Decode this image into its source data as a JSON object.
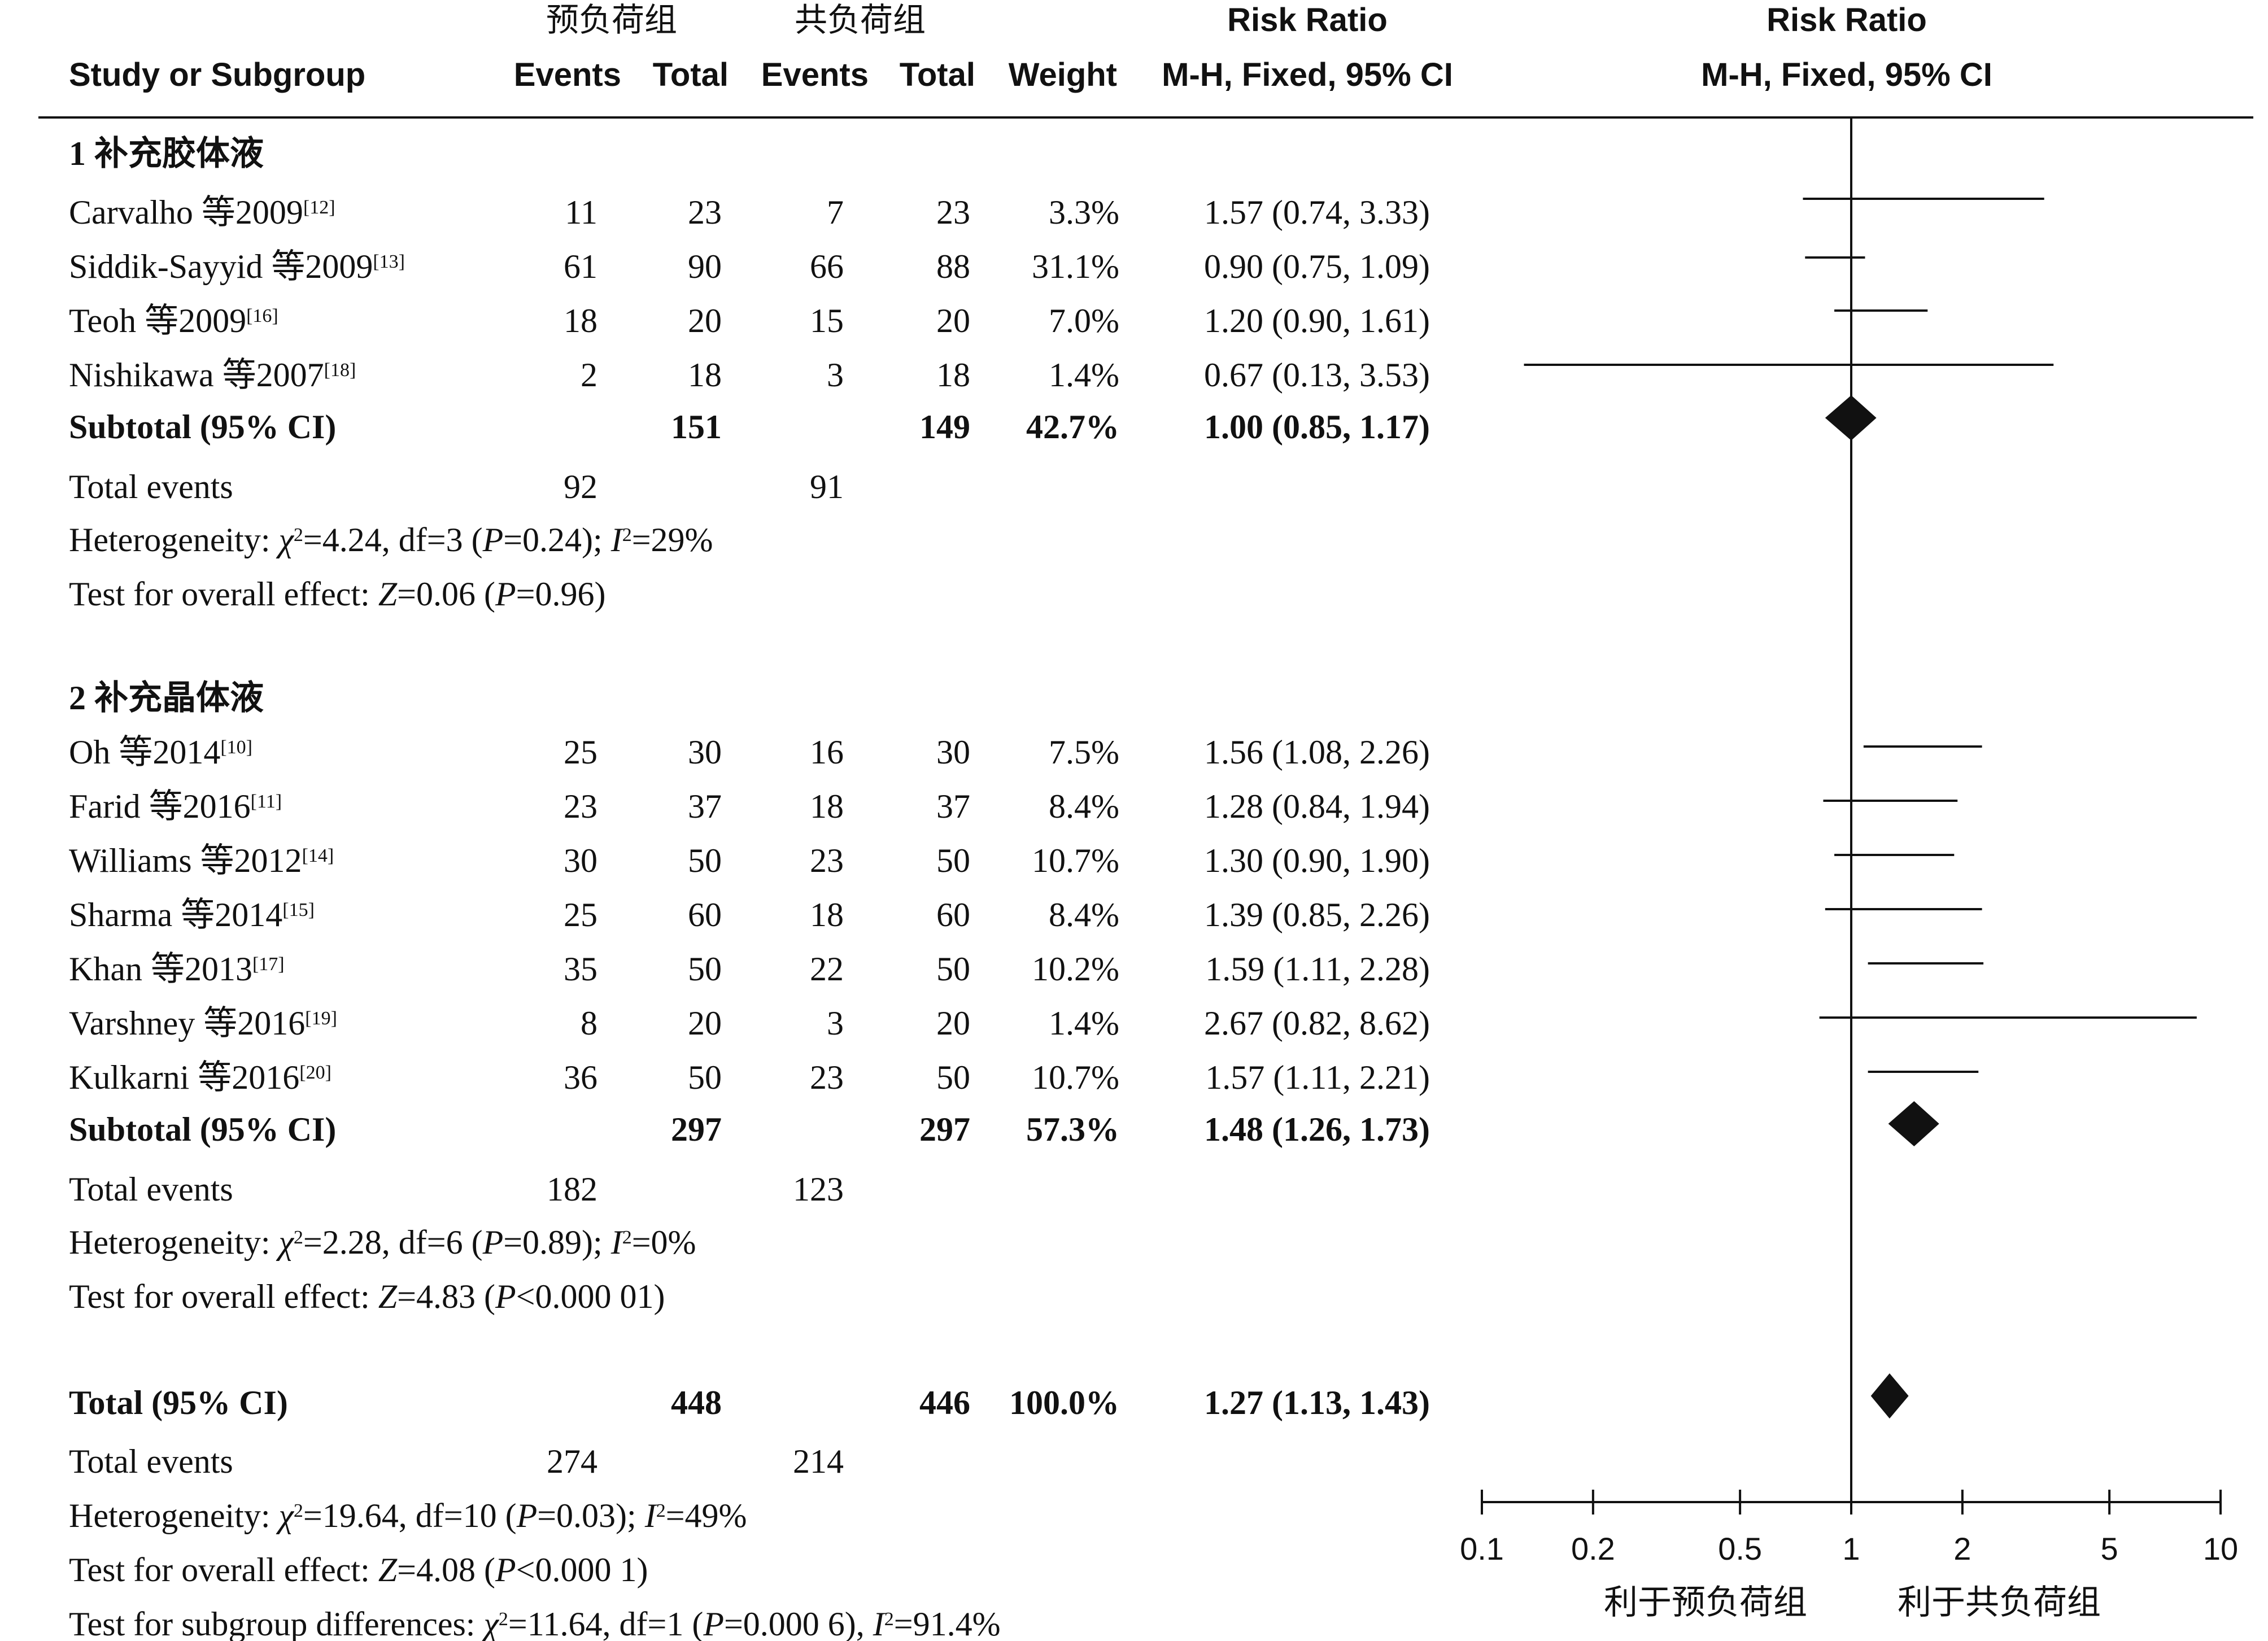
{
  "header": {
    "group_exp": "预负荷组",
    "group_ctl": "共负荷组",
    "col_study": "Study or Subgroup",
    "col_events": "Events",
    "col_total": "Total",
    "col_weight": "Weight",
    "col_rr_title": "Risk Ratio",
    "col_rr_method": "M-H, Fixed, 95% CI",
    "plot_title": "Risk Ratio",
    "plot_method": "M-H, Fixed, 95% CI"
  },
  "subgroups": [
    {
      "title": "1 补充胶体液",
      "studies": [
        {
          "name": "Carvalho 等2009",
          "ref": "[12]",
          "e1": "11",
          "t1": "23",
          "e2": "7",
          "t2": "23",
          "weight": "3.3%",
          "ci_text": "1.57 (0.74, 3.33)",
          "rr": 1.57,
          "lo": 0.74,
          "hi": 3.33
        },
        {
          "name": "Siddik-Sayyid 等2009",
          "ref": "[13]",
          "e1": "61",
          "t1": "90",
          "e2": "66",
          "t2": "88",
          "weight": "31.1%",
          "ci_text": "0.90 (0.75, 1.09)",
          "rr": 0.9,
          "lo": 0.75,
          "hi": 1.09
        },
        {
          "name": "Teoh 等2009",
          "ref": "[16]",
          "e1": "18",
          "t1": "20",
          "e2": "15",
          "t2": "20",
          "weight": "7.0%",
          "ci_text": "1.20 (0.90, 1.61)",
          "rr": 1.2,
          "lo": 0.9,
          "hi": 1.61
        },
        {
          "name": "Nishikawa 等2007",
          "ref": "[18]",
          "e1": "2",
          "t1": "18",
          "e2": "3",
          "t2": "18",
          "weight": "1.4%",
          "ci_text": "0.67 (0.13, 3.53)",
          "rr": 0.67,
          "lo": 0.13,
          "hi": 3.53
        }
      ],
      "subtotal": {
        "label": "Subtotal (95% CI)",
        "t1": "151",
        "t2": "149",
        "weight": "42.7%",
        "ci_text": "1.00 (0.85, 1.17)",
        "rr": 1.0,
        "lo": 0.85,
        "hi": 1.17
      },
      "total_events": {
        "label": "Total events",
        "e1": "92",
        "e2": "91"
      },
      "heterogeneity": {
        "prefix": "Heterogeneity: ",
        "chi": "χ",
        "chi_text": "=4.24, df=3 (",
        "p": "P",
        "p_text": "=0.24); ",
        "i": "I",
        "i_text": "=29%"
      },
      "overall": {
        "prefix": "Test for overall effect: ",
        "z": "Z",
        "z_text": "=0.06 (",
        "p": "P",
        "p_text": "=0.96)"
      }
    },
    {
      "title": "2 补充晶体液",
      "studies": [
        {
          "name": "Oh 等2014",
          "ref": "[10]",
          "e1": "25",
          "t1": "30",
          "e2": "16",
          "t2": "30",
          "weight": "7.5%",
          "ci_text": "1.56 (1.08, 2.26)",
          "rr": 1.56,
          "lo": 1.08,
          "hi": 2.26
        },
        {
          "name": "Farid 等2016",
          "ref": "[11]",
          "e1": "23",
          "t1": "37",
          "e2": "18",
          "t2": "37",
          "weight": "8.4%",
          "ci_text": "1.28 (0.84, 1.94)",
          "rr": 1.28,
          "lo": 0.84,
          "hi": 1.94
        },
        {
          "name": "Williams 等2012",
          "ref": "[14]",
          "e1": "30",
          "t1": "50",
          "e2": "23",
          "t2": "50",
          "weight": "10.7%",
          "ci_text": "1.30 (0.90, 1.90)",
          "rr": 1.3,
          "lo": 0.9,
          "hi": 1.9
        },
        {
          "name": "Sharma 等2014",
          "ref": "[15]",
          "e1": "25",
          "t1": "60",
          "e2": "18",
          "t2": "60",
          "weight": "8.4%",
          "ci_text": "1.39 (0.85, 2.26)",
          "rr": 1.39,
          "lo": 0.85,
          "hi": 2.26
        },
        {
          "name": "Khan 等2013",
          "ref": "[17]",
          "e1": "35",
          "t1": "50",
          "e2": "22",
          "t2": "50",
          "weight": "10.2%",
          "ci_text": "1.59 (1.11, 2.28)",
          "rr": 1.59,
          "lo": 1.11,
          "hi": 2.28
        },
        {
          "name": "Varshney 等2016",
          "ref": "[19]",
          "e1": "8",
          "t1": "20",
          "e2": "3",
          "t2": "20",
          "weight": "1.4%",
          "ci_text": "2.67 (0.82, 8.62)",
          "rr": 2.67,
          "lo": 0.82,
          "hi": 8.62
        },
        {
          "name": "Kulkarni 等2016",
          "ref": "[20]",
          "e1": "36",
          "t1": "50",
          "e2": "23",
          "t2": "50",
          "weight": "10.7%",
          "ci_text": "1.57 (1.11, 2.21)",
          "rr": 1.57,
          "lo": 1.11,
          "hi": 2.21
        }
      ],
      "subtotal": {
        "label": "Subtotal (95% CI)",
        "t1": "297",
        "t2": "297",
        "weight": "57.3%",
        "ci_text": "1.48 (1.26, 1.73)",
        "rr": 1.48,
        "lo": 1.26,
        "hi": 1.73
      },
      "total_events": {
        "label": "Total events",
        "e1": "182",
        "e2": "123"
      },
      "heterogeneity": {
        "prefix": "Heterogeneity: ",
        "chi": "χ",
        "chi_text": "=2.28, df=6 (",
        "p": "P",
        "p_text": "=0.89); ",
        "i": "I",
        "i_text": "=0%"
      },
      "overall": {
        "prefix": "Test for overall effect: ",
        "z": "Z",
        "z_text": "=4.83 (",
        "p": "P",
        "p_text": "<0.000 01)"
      }
    }
  ],
  "total": {
    "label": "Total (95% CI)",
    "t1": "448",
    "t2": "446",
    "weight": "100.0%",
    "ci_text": "1.27 (1.13, 1.43)",
    "rr": 1.27,
    "lo": 1.13,
    "hi": 1.43,
    "total_events": {
      "label": "Total events",
      "e1": "274",
      "e2": "214"
    },
    "heterogeneity": {
      "prefix": "Heterogeneity: ",
      "chi": "χ",
      "chi_text": "=19.64, df=10 (",
      "p": "P",
      "p_text": "=0.03); ",
      "i": "I",
      "i_text": "=49%"
    },
    "overall": {
      "prefix": "Test for overall effect: ",
      "z": "Z",
      "z_text": "=4.08 (",
      "p": "P",
      "p_text": "<0.000 1)"
    },
    "subgroup_diff": {
      "prefix": "Test for subgroup differences: ",
      "chi": "χ",
      "chi_text": "=11.64, df=1 (",
      "p": "P",
      "p_text": "=0.000 6), ",
      "i": "I",
      "i_text": "=91.4%"
    }
  },
  "axis": {
    "scale": "log",
    "range": [
      0.1,
      10
    ],
    "ticks": [
      {
        "value": 0.1,
        "label": "0.1"
      },
      {
        "value": 0.2,
        "label": "0.2"
      },
      {
        "value": 0.5,
        "label": "0.5"
      },
      {
        "value": 1,
        "label": "1"
      },
      {
        "value": 2,
        "label": "2"
      },
      {
        "value": 5,
        "label": "5"
      },
      {
        "value": 10,
        "label": "10"
      }
    ],
    "favours_left": "利于预负荷组",
    "favours_right": "利于共负荷组"
  },
  "chart_data": {
    "type": "forest",
    "scale": "log",
    "xlim": [
      0.1,
      10
    ],
    "null_line": 1,
    "rows": [
      {
        "label": "Carvalho 等2009",
        "rr": 1.57,
        "lo": 0.74,
        "hi": 3.33,
        "weight": 3.3
      },
      {
        "label": "Siddik-Sayyid 等2009",
        "rr": 0.9,
        "lo": 0.75,
        "hi": 1.09,
        "weight": 31.1
      },
      {
        "label": "Teoh 等2009",
        "rr": 1.2,
        "lo": 0.9,
        "hi": 1.61,
        "weight": 7.0
      },
      {
        "label": "Nishikawa 等2007",
        "rr": 0.67,
        "lo": 0.13,
        "hi": 3.53,
        "weight": 1.4
      },
      {
        "label": "Subtotal (95% CI)",
        "rr": 1.0,
        "lo": 0.85,
        "hi": 1.17,
        "weight": 42.7,
        "summary": true
      },
      {
        "label": "Oh 等2014",
        "rr": 1.56,
        "lo": 1.08,
        "hi": 2.26,
        "weight": 7.5
      },
      {
        "label": "Farid 等2016",
        "rr": 1.28,
        "lo": 0.84,
        "hi": 1.94,
        "weight": 8.4
      },
      {
        "label": "Williams 等2012",
        "rr": 1.3,
        "lo": 0.9,
        "hi": 1.9,
        "weight": 10.7
      },
      {
        "label": "Sharma 等2014",
        "rr": 1.39,
        "lo": 0.85,
        "hi": 2.26,
        "weight": 8.4
      },
      {
        "label": "Khan 等2013",
        "rr": 1.59,
        "lo": 1.11,
        "hi": 2.28,
        "weight": 10.2
      },
      {
        "label": "Varshney 等2016",
        "rr": 2.67,
        "lo": 0.82,
        "hi": 8.62,
        "weight": 1.4
      },
      {
        "label": "Kulkarni 等2016",
        "rr": 1.57,
        "lo": 1.11,
        "hi": 2.21,
        "weight": 10.7
      },
      {
        "label": "Subtotal (95% CI)",
        "rr": 1.48,
        "lo": 1.26,
        "hi": 1.73,
        "weight": 57.3,
        "summary": true
      },
      {
        "label": "Total (95% CI)",
        "rr": 1.27,
        "lo": 1.13,
        "hi": 1.43,
        "weight": 100.0,
        "summary": true
      }
    ]
  }
}
